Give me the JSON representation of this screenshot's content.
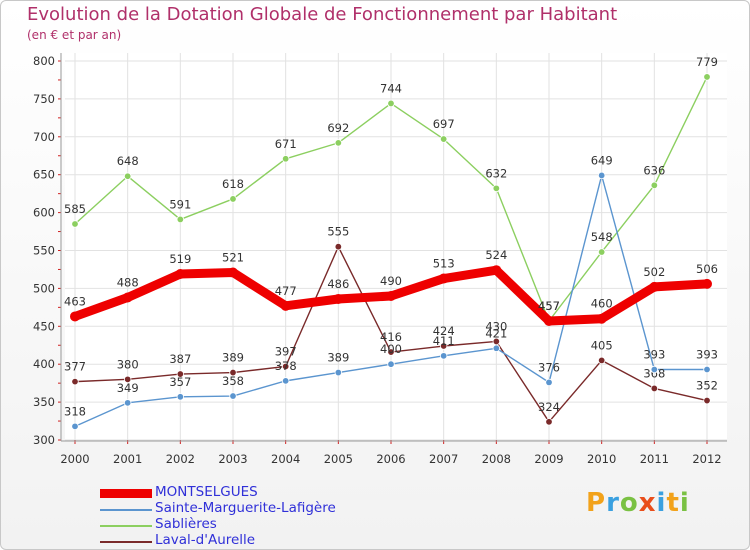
{
  "title": "Evolution de la Dotation Globale de Fonctionnement par Habitant",
  "subtitle": "(en € et par an)",
  "brand": "Proxiti",
  "chart_data": {
    "type": "line",
    "x": [
      "2000",
      "2001",
      "2002",
      "2003",
      "2004",
      "2005",
      "2006",
      "2007",
      "2008",
      "2009",
      "2010",
      "2011",
      "2012"
    ],
    "ylim": [
      300,
      800
    ],
    "yticks": [
      300,
      350,
      400,
      450,
      500,
      550,
      600,
      650,
      700,
      750,
      800
    ],
    "grid": true,
    "legend_position": "bottom-left",
    "series": [
      {
        "name": "Sablières",
        "color": "#8ccf60",
        "values": [
          585,
          648,
          591,
          618,
          671,
          692,
          744,
          697,
          632,
          457,
          548,
          636,
          779
        ]
      },
      {
        "name": "Laval-d'Aurelle",
        "color": "#7a2a2a",
        "values": [
          377,
          380,
          387,
          389,
          397,
          555,
          416,
          424,
          430,
          324,
          405,
          368,
          352
        ]
      },
      {
        "name": "Sainte-Marguerite-Lafigère",
        "color": "#5b95cf",
        "values": [
          318,
          349,
          357,
          358,
          378,
          389,
          400,
          411,
          421,
          376,
          649,
          393,
          393
        ]
      },
      {
        "name": "MONTSELGUES",
        "color": "#ee0000",
        "values": [
          463,
          488,
          519,
          521,
          477,
          486,
          490,
          513,
          524,
          457,
          460,
          502,
          506
        ]
      }
    ],
    "legend": [
      {
        "name": "MONTSELGUES",
        "color": "#ee0000"
      },
      {
        "name": "Sainte-Marguerite-Lafigère",
        "color": "#5b95cf"
      },
      {
        "name": "Sablières",
        "color": "#8ccf60"
      },
      {
        "name": "Laval-d'Aurelle",
        "color": "#7a2a2a"
      }
    ]
  }
}
